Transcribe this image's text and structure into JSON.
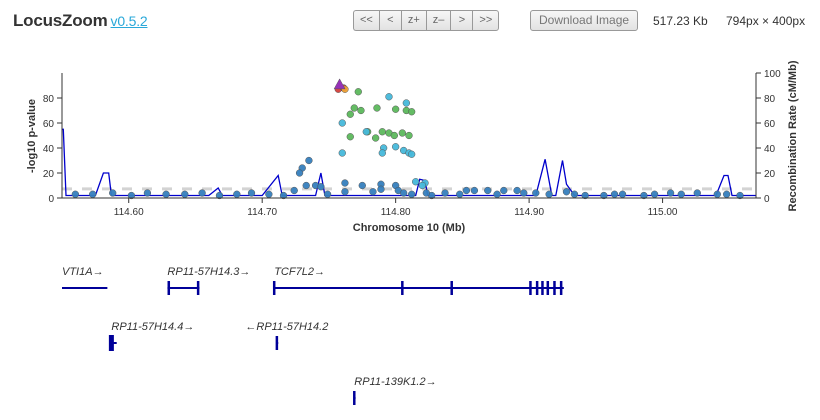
{
  "header": {
    "title": "LocusZoom",
    "version": "v0.5.2",
    "nav_buttons": [
      "<<",
      "<",
      "z+",
      "z–",
      ">",
      ">>"
    ],
    "download_label": "Download Image",
    "file_size": "517.23 Kb",
    "dimensions": "794px × 400px"
  },
  "colors": {
    "recomb_line": "#0000cc",
    "threshold_line": "#d3d3d3",
    "ld_low": "#357ebd",
    "ld_mid": "#46b8da",
    "ld_green": "#5cb85c",
    "ld_orange": "#eea236",
    "ld_red": "#d43f3a",
    "lead_variant": "#9632b8",
    "gene": "#000099"
  },
  "chart_data": {
    "type": "scatter",
    "xlabel": "Chromosome 10 (Mb)",
    "ylabel": "-log10 p-value",
    "y2label": "Recombination Rate (cM/Mb)",
    "xlim": [
      114.55,
      115.07
    ],
    "ylim": [
      0,
      100
    ],
    "y2lim": [
      0,
      100
    ],
    "x_ticks": [
      "114.60",
      "114.70",
      "114.80",
      "114.90",
      "115.00"
    ],
    "x_tick_values": [
      114.6,
      114.7,
      114.8,
      114.9,
      115.0
    ],
    "y_ticks": [
      "0",
      "20",
      "40",
      "60",
      "80"
    ],
    "y2_ticks": [
      "0",
      "20",
      "40",
      "60",
      "80",
      "100"
    ],
    "threshold": 7.3,
    "lead_variant": {
      "x": 114.758,
      "y": 90.5
    },
    "series": [
      {
        "color": "ld_red",
        "points": [
          [
            114.757,
            87
          ],
          [
            114.761,
            88
          ]
        ]
      },
      {
        "color": "ld_orange",
        "points": [
          [
            114.762,
            87
          ]
        ]
      },
      {
        "color": "ld_green",
        "points": [
          [
            114.772,
            85
          ],
          [
            114.766,
            67
          ],
          [
            114.766,
            49
          ],
          [
            114.779,
            53
          ],
          [
            114.785,
            48
          ],
          [
            114.79,
            53
          ],
          [
            114.795,
            52
          ],
          [
            114.799,
            50
          ],
          [
            114.805,
            52
          ],
          [
            114.81,
            50
          ],
          [
            114.769,
            72
          ],
          [
            114.774,
            70
          ],
          [
            114.786,
            72
          ],
          [
            114.8,
            71
          ],
          [
            114.808,
            70
          ],
          [
            114.812,
            69
          ]
        ]
      },
      {
        "color": "ld_mid",
        "points": [
          [
            114.795,
            81
          ],
          [
            114.808,
            76
          ],
          [
            114.76,
            60
          ],
          [
            114.791,
            40
          ],
          [
            114.8,
            41
          ],
          [
            114.76,
            36
          ],
          [
            114.806,
            38
          ],
          [
            114.81,
            36
          ],
          [
            114.812,
            35
          ],
          [
            114.822,
            12
          ],
          [
            114.778,
            53
          ],
          [
            114.79,
            36
          ],
          [
            114.815,
            13
          ],
          [
            114.82,
            10
          ]
        ]
      },
      {
        "color": "ld_low",
        "points": [
          [
            114.735,
            30
          ],
          [
            114.73,
            24
          ],
          [
            114.728,
            20
          ],
          [
            114.733,
            10
          ],
          [
            114.74,
            10
          ],
          [
            114.744,
            9
          ],
          [
            114.762,
            12
          ],
          [
            114.775,
            10
          ],
          [
            114.789,
            11
          ],
          [
            114.8,
            10
          ],
          [
            114.762,
            5
          ],
          [
            114.783,
            5
          ],
          [
            114.789,
            7
          ],
          [
            114.802,
            6
          ],
          [
            114.806,
            4
          ],
          [
            114.827,
            2
          ],
          [
            114.837,
            4
          ],
          [
            114.853,
            6
          ],
          [
            114.859,
            6
          ],
          [
            114.869,
            6
          ],
          [
            114.881,
            6
          ],
          [
            114.891,
            6
          ],
          [
            114.905,
            4
          ],
          [
            114.915,
            3
          ],
          [
            114.928,
            5
          ],
          [
            114.942,
            2
          ],
          [
            114.956,
            2
          ],
          [
            114.97,
            3
          ],
          [
            114.986,
            2
          ],
          [
            115.006,
            4
          ],
          [
            115.026,
            4
          ],
          [
            115.041,
            3
          ],
          [
            115.058,
            2
          ],
          [
            114.56,
            3
          ],
          [
            114.573,
            3
          ],
          [
            114.588,
            4
          ],
          [
            114.602,
            2
          ],
          [
            114.614,
            4
          ],
          [
            114.628,
            3
          ],
          [
            114.642,
            3
          ],
          [
            114.655,
            4
          ],
          [
            114.668,
            2
          ],
          [
            114.681,
            3
          ],
          [
            114.692,
            4
          ],
          [
            114.705,
            3
          ],
          [
            114.716,
            2
          ],
          [
            114.724,
            6
          ],
          [
            114.749,
            3
          ],
          [
            114.812,
            3
          ],
          [
            114.823,
            4
          ],
          [
            114.848,
            3
          ],
          [
            114.876,
            3
          ],
          [
            114.896,
            4
          ],
          [
            114.934,
            3
          ],
          [
            114.964,
            3
          ],
          [
            114.994,
            3
          ],
          [
            115.014,
            3
          ],
          [
            115.048,
            3
          ]
        ]
      }
    ],
    "recombination": [
      [
        114.55,
        55
      ],
      [
        114.551,
        55
      ],
      [
        114.553,
        2
      ],
      [
        114.575,
        2
      ],
      [
        114.581,
        20
      ],
      [
        114.585,
        20
      ],
      [
        114.587,
        2
      ],
      [
        114.66,
        2
      ],
      [
        114.667,
        8
      ],
      [
        114.67,
        2
      ],
      [
        114.7,
        2
      ],
      [
        114.712,
        18
      ],
      [
        114.715,
        2
      ],
      [
        114.74,
        2
      ],
      [
        114.744,
        20
      ],
      [
        114.747,
        2
      ],
      [
        114.815,
        2
      ],
      [
        114.818,
        15
      ],
      [
        114.822,
        14
      ],
      [
        114.824,
        2
      ],
      [
        114.905,
        2
      ],
      [
        114.912,
        31
      ],
      [
        114.917,
        2
      ],
      [
        114.92,
        2
      ],
      [
        114.925,
        30
      ],
      [
        114.928,
        11
      ],
      [
        114.934,
        2
      ],
      [
        115.04,
        2
      ],
      [
        115.046,
        18
      ],
      [
        115.049,
        18
      ],
      [
        115.052,
        2
      ],
      [
        115.07,
        2
      ]
    ]
  },
  "genes": [
    {
      "name": "VTI1A→",
      "start": 114.55,
      "end": 114.584,
      "row": 0,
      "exons": []
    },
    {
      "name": "RP11-57H14.3→",
      "start": 114.629,
      "end": 114.653,
      "row": 0,
      "exons": [
        114.63,
        114.652
      ]
    },
    {
      "name": "TCF7L2→",
      "start": 114.709,
      "end": 114.926,
      "row": 0,
      "exons": [
        114.709,
        114.805,
        114.842,
        114.901,
        114.906,
        114.91,
        114.914,
        114.919,
        114.924
      ]
    },
    {
      "name": "RP11-57H14.4→",
      "start": 114.587,
      "end": 114.591,
      "row": 1,
      "exons": [
        114.587
      ]
    },
    {
      "name": "←RP11-57H14.2",
      "start": 114.711,
      "end": 114.712,
      "row": 1,
      "exons": [
        114.711
      ]
    },
    {
      "name": "RP11-139K1.2→",
      "start": 114.769,
      "end": 114.77,
      "row": 2,
      "exons": [
        114.769
      ]
    }
  ]
}
